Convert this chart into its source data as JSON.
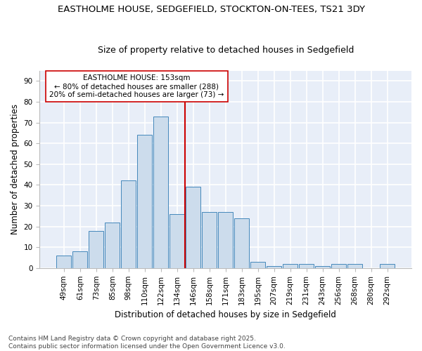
{
  "title_line1": "EASTHOLME HOUSE, SEDGEFIELD, STOCKTON-ON-TEES, TS21 3DY",
  "title_line2": "Size of property relative to detached houses in Sedgefield",
  "xlabel": "Distribution of detached houses by size in Sedgefield",
  "ylabel": "Number of detached properties",
  "categories": [
    "49sqm",
    "61sqm",
    "73sqm",
    "85sqm",
    "98sqm",
    "110sqm",
    "122sqm",
    "134sqm",
    "146sqm",
    "158sqm",
    "171sqm",
    "183sqm",
    "195sqm",
    "207sqm",
    "219sqm",
    "231sqm",
    "243sqm",
    "256sqm",
    "268sqm",
    "280sqm",
    "292sqm"
  ],
  "values": [
    6,
    8,
    18,
    22,
    42,
    64,
    73,
    26,
    39,
    27,
    27,
    24,
    3,
    1,
    2,
    2,
    1,
    2,
    2,
    0,
    2
  ],
  "bar_color": "#ccdcec",
  "bar_edge_color": "#4488bb",
  "vline_x_index": 8,
  "vline_color": "#cc0000",
  "annotation_text": "EASTHOLME HOUSE: 153sqm\n← 80% of detached houses are smaller (288)\n20% of semi-detached houses are larger (73) →",
  "annotation_box_facecolor": "#ffffff",
  "annotation_box_edgecolor": "#cc0000",
  "ylim": [
    0,
    95
  ],
  "yticks": [
    0,
    10,
    20,
    30,
    40,
    50,
    60,
    70,
    80,
    90
  ],
  "footnote": "Contains HM Land Registry data © Crown copyright and database right 2025.\nContains public sector information licensed under the Open Government Licence v3.0.",
  "fig_bg_color": "#ffffff",
  "plot_bg_color": "#e8eef8",
  "grid_color": "#ffffff",
  "title_fontsize": 9.5,
  "subtitle_fontsize": 9,
  "axis_label_fontsize": 8.5,
  "tick_fontsize": 7.5,
  "annotation_fontsize": 7.5,
  "footnote_fontsize": 6.5
}
